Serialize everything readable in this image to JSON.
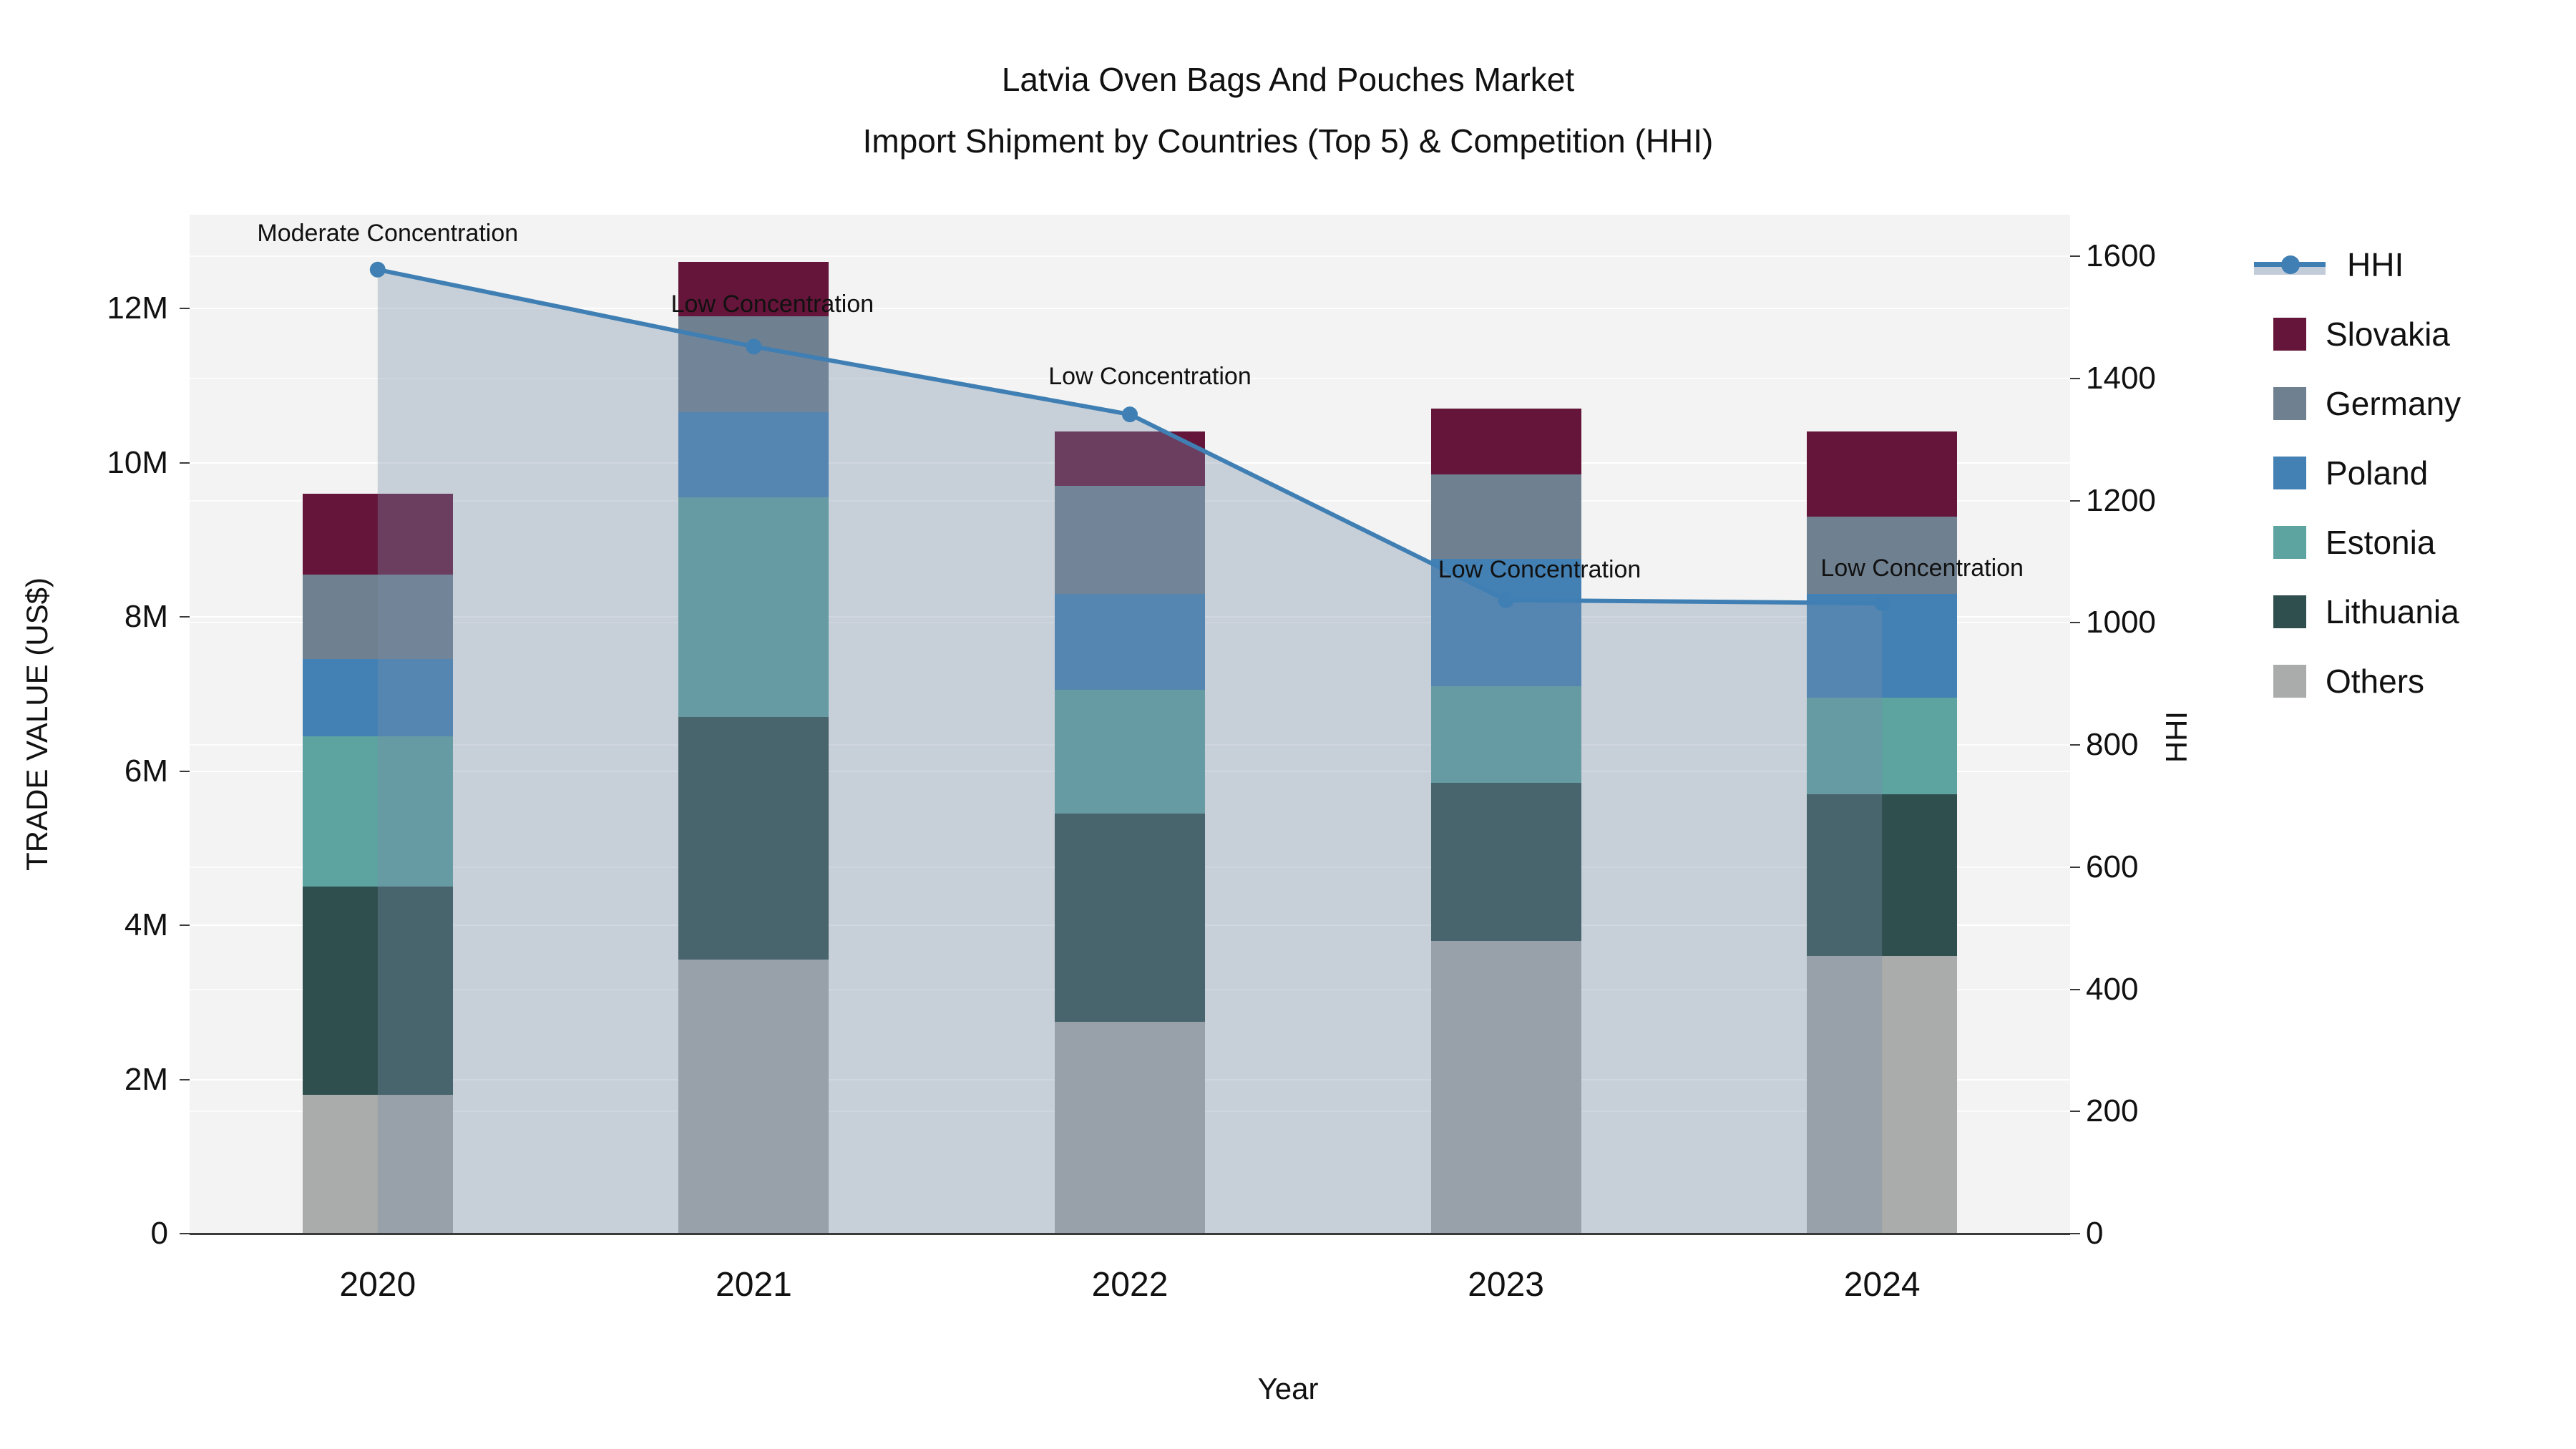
{
  "title": {
    "line1": "Latvia Oven Bags And Pouches Market",
    "line2": "Import Shipment by Countries (Top 5) & Competition (HHI)"
  },
  "axes": {
    "left": {
      "title": "TRADE VALUE (US$)",
      "ticks": [
        {
          "v": 0,
          "label": "0"
        },
        {
          "v": 2,
          "label": "2M"
        },
        {
          "v": 4,
          "label": "4M"
        },
        {
          "v": 6,
          "label": "6M"
        },
        {
          "v": 8,
          "label": "8M"
        },
        {
          "v": 10,
          "label": "10M"
        },
        {
          "v": 12,
          "label": "12M"
        }
      ]
    },
    "right": {
      "title": "HHI",
      "ticks": [
        0,
        200,
        400,
        600,
        800,
        1000,
        1200,
        1400,
        1600
      ]
    },
    "x": {
      "title": "Year",
      "categories": [
        "2020",
        "2021",
        "2022",
        "2023",
        "2024"
      ]
    }
  },
  "legend": [
    {
      "name": "HHI",
      "type": "line",
      "color": "#3f7fb4"
    },
    {
      "name": "Slovakia",
      "type": "swatch",
      "color": "#641539"
    },
    {
      "name": "Germany",
      "type": "swatch",
      "color": "#6f8090"
    },
    {
      "name": "Poland",
      "type": "swatch",
      "color": "#4381b5"
    },
    {
      "name": "Estonia",
      "type": "swatch",
      "color": "#5da3a0"
    },
    {
      "name": "Lithuania",
      "type": "swatch",
      "color": "#2f4f4e"
    },
    {
      "name": "Others",
      "type": "swatch",
      "color": "#a9acab"
    }
  ],
  "chart_data": {
    "type": "bar",
    "subtype": "stacked-bar-with-secondary-line",
    "title": "Latvia Oven Bags And Pouches Market — Import Shipment by Countries (Top 5) & Competition (HHI)",
    "categories": [
      "2020",
      "2021",
      "2022",
      "2023",
      "2024"
    ],
    "units": "US$ millions",
    "series": [
      {
        "name": "Others",
        "color": "#a9acab",
        "values": [
          1.8,
          3.55,
          2.75,
          3.8,
          3.6
        ]
      },
      {
        "name": "Lithuania",
        "color": "#2f4f4e",
        "values": [
          2.7,
          3.15,
          2.7,
          2.05,
          2.1
        ]
      },
      {
        "name": "Estonia",
        "color": "#5da3a0",
        "values": [
          1.95,
          2.85,
          1.6,
          1.25,
          1.25
        ]
      },
      {
        "name": "Poland",
        "color": "#4381b5",
        "values": [
          1.0,
          1.1,
          1.25,
          1.65,
          1.35
        ]
      },
      {
        "name": "Germany",
        "color": "#6f8090",
        "values": [
          1.1,
          1.25,
          1.4,
          1.1,
          1.0
        ]
      },
      {
        "name": "Slovakia",
        "color": "#641539",
        "values": [
          1.05,
          0.7,
          0.7,
          0.85,
          1.1
        ]
      }
    ],
    "bar_totals": [
      9.6,
      12.6,
      10.4,
      10.7,
      10.4
    ],
    "line_series": {
      "name": "HHI",
      "axis": "right",
      "color": "#3f7fb4",
      "fill_color": "rgba(119,141,169,0.35)",
      "values": [
        1578,
        1452,
        1341,
        1037,
        1032
      ]
    },
    "annotations": [
      {
        "x": "2020",
        "text": "Moderate Concentration"
      },
      {
        "x": "2021",
        "text": "Low Concentration"
      },
      {
        "x": "2022",
        "text": "Low Concentration"
      },
      {
        "x": "2023",
        "text": "Low Concentration"
      },
      {
        "x": "2024",
        "text": "Low Concentration"
      }
    ],
    "xlabel": "Year",
    "ylabel": "TRADE VALUE (US$)",
    "y2label": "HHI",
    "ylim": [
      0,
      13.2
    ],
    "y2lim": [
      0,
      1668
    ],
    "grid": true,
    "legend_position": "right",
    "plot_bg": "#f2f3f2"
  }
}
